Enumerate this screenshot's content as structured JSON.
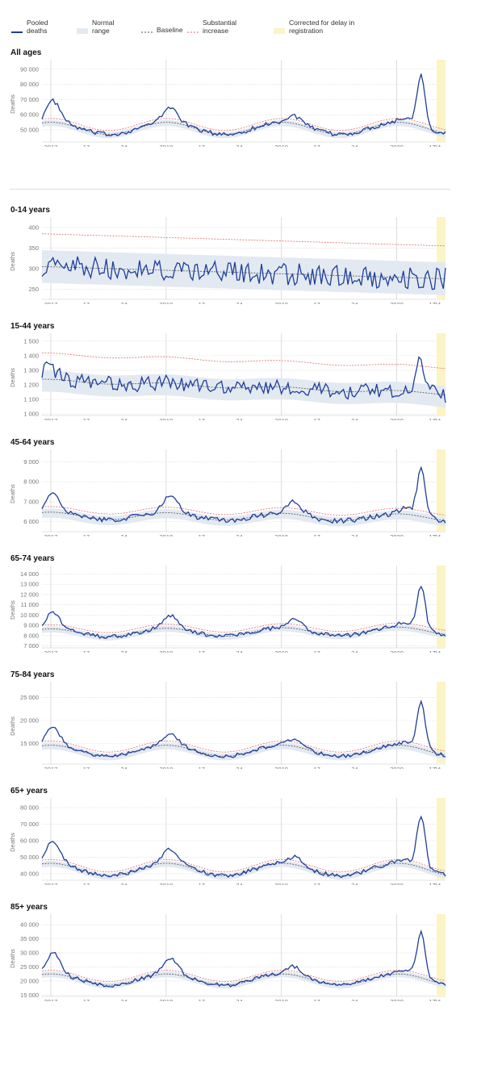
{
  "legend": {
    "pooled": "Pooled\ndeaths",
    "normal": "Normal\nrange",
    "baseline": "Baseline",
    "substantial": "Substantial\nincrease",
    "corrected": "Corrected for delay in\nregistration",
    "colors": {
      "pooled": "#1f3f9a",
      "normal": "#e3e9f1",
      "baseline": "#555555",
      "substantial": "#e06b6b",
      "corrected": "#fbf4c4"
    }
  },
  "chart_data": [
    {
      "type": "line",
      "title": "All ages",
      "ylabel": "Deaths",
      "ylim": [
        42000,
        92000
      ],
      "yticks": [
        50000,
        60000,
        70000,
        80000,
        90000
      ],
      "yticklabels": [
        "50 000",
        "60 000",
        "70 000",
        "80 000",
        "90 000"
      ],
      "xticklabels": [
        "2017",
        "17",
        "34",
        "2018",
        "17",
        "34",
        "2019",
        "17",
        "34",
        "2020",
        "17",
        "34"
      ],
      "profile": {
        "base": 51000,
        "season": 4000,
        "noise": 1500,
        "bandLow": 2500,
        "bandHigh": 1500,
        "subst": 2500,
        "peaks": [
          [
            5,
            14000
          ],
          [
            58,
            10000
          ],
          [
            114,
            5000
          ],
          [
            164,
            3000
          ]
        ],
        "covid": [
          [
            171,
            34000
          ]
        ]
      }
    },
    {
      "type": "line",
      "title": "0-14 years",
      "ylabel": "Deaths",
      "ylim": [
        225,
        410
      ],
      "yticks": [
        250,
        300,
        350,
        400
      ],
      "yticklabels": [
        "250",
        "300",
        "350",
        "400"
      ],
      "xticklabels": [
        "2017",
        "17",
        "34",
        "2018",
        "17",
        "34",
        "2019",
        "17",
        "34",
        "2020",
        "17",
        "34"
      ],
      "profile": {
        "base": 305,
        "trend": -30,
        "season": 0,
        "noise": 28,
        "bandLow": 40,
        "bandHigh": 40,
        "subst": 80,
        "peaks": [],
        "covid": []
      }
    },
    {
      "type": "line",
      "title": "15-44 years",
      "ylabel": "Deaths",
      "ylim": [
        990,
        1510
      ],
      "yticks": [
        1000,
        1100,
        1200,
        1300,
        1400,
        1500
      ],
      "yticklabels": [
        "1 000",
        "1 100",
        "1 200",
        "1 300",
        "1 400",
        "1 500"
      ],
      "xticklabels": [
        "2017",
        "17",
        "34",
        "2018",
        "17",
        "34",
        "2019",
        "17",
        "34",
        "2020",
        "17",
        "34"
      ],
      "profile": {
        "base": 1230,
        "trend": -90,
        "season": 10,
        "noise": 55,
        "bandLow": 85,
        "bandHigh": 60,
        "subst": 180,
        "peaks": [
          [
            3,
            80
          ]
        ],
        "covid": [
          [
            171,
            220
          ]
        ]
      }
    },
    {
      "type": "line",
      "title": "45-64 years",
      "ylabel": "Deaths",
      "ylim": [
        5500,
        9300
      ],
      "yticks": [
        6000,
        7000,
        8000,
        9000
      ],
      "yticklabels": [
        "6 000",
        "7 000",
        "8 000",
        "9 000"
      ],
      "xticklabels": [
        "2017",
        "17",
        "34",
        "2018",
        "17",
        "34",
        "2019",
        "17",
        "34",
        "2020",
        "17",
        "34"
      ],
      "profile": {
        "base": 6300,
        "trend": -100,
        "season": 180,
        "noise": 130,
        "bandLow": 280,
        "bandHigh": 180,
        "subst": 280,
        "peaks": [
          [
            5,
            900
          ],
          [
            58,
            900
          ],
          [
            114,
            600
          ],
          [
            164,
            300
          ]
        ],
        "covid": [
          [
            171,
            2300
          ]
        ]
      }
    },
    {
      "type": "line",
      "title": "65-74 years",
      "ylabel": "Deaths",
      "ylim": [
        6800,
        14200
      ],
      "yticks": [
        7000,
        8000,
        9000,
        10000,
        11000,
        12000,
        13000,
        14000
      ],
      "yticklabels": [
        "7 000",
        "8 000",
        "9 000",
        "10 000",
        "11 000",
        "12 000",
        "13 000",
        "14 000"
      ],
      "xticklabels": [
        "2017",
        "17",
        "34",
        "2018",
        "17",
        "34",
        "2019",
        "17",
        "34",
        "2020",
        "17",
        "34"
      ],
      "profile": {
        "base": 8250,
        "trend": 200,
        "season": 400,
        "noise": 200,
        "bandLow": 350,
        "bandHigh": 250,
        "subst": 400,
        "peaks": [
          [
            5,
            1600
          ],
          [
            58,
            1200
          ],
          [
            114,
            900
          ],
          [
            164,
            500
          ]
        ],
        "covid": [
          [
            171,
            4200
          ]
        ]
      }
    },
    {
      "type": "line",
      "title": "75-84 years",
      "ylabel": "Deaths",
      "ylim": [
        10500,
        27000
      ],
      "yticks": [
        15000,
        20000,
        25000
      ],
      "yticklabels": [
        "15 000",
        "20 000",
        "25 000"
      ],
      "xticklabels": [
        "2017",
        "17",
        "34",
        "2018",
        "17",
        "34",
        "2019",
        "17",
        "34",
        "2020",
        "17",
        "34"
      ],
      "profile": {
        "base": 13400,
        "season": 1200,
        "noise": 400,
        "bandLow": 900,
        "bandHigh": 600,
        "subst": 900,
        "peaks": [
          [
            5,
            3800
          ],
          [
            58,
            2600
          ],
          [
            114,
            1400
          ],
          [
            164,
            600
          ]
        ],
        "covid": [
          [
            171,
            10000
          ]
        ]
      }
    },
    {
      "type": "line",
      "title": "65+ years",
      "ylabel": "Deaths",
      "ylim": [
        36000,
        82000
      ],
      "yticks": [
        40000,
        50000,
        60000,
        70000,
        80000
      ],
      "yticklabels": [
        "40 000",
        "50 000",
        "60 000",
        "70 000",
        "80 000"
      ],
      "xticklabels": [
        "2017",
        "17",
        "34",
        "2018",
        "17",
        "34",
        "2019",
        "17",
        "34",
        "2020",
        "17",
        "34"
      ],
      "profile": {
        "base": 42500,
        "season": 3800,
        "noise": 1300,
        "bandLow": 2200,
        "bandHigh": 1500,
        "subst": 2300,
        "peaks": [
          [
            5,
            13000
          ],
          [
            58,
            8500
          ],
          [
            114,
            4500
          ],
          [
            164,
            2500
          ]
        ],
        "covid": [
          [
            171,
            31000
          ]
        ]
      }
    },
    {
      "type": "line",
      "title": "85+ years",
      "ylabel": "Deaths",
      "ylim": [
        14500,
        41500
      ],
      "yticks": [
        15000,
        20000,
        25000,
        30000,
        35000,
        40000
      ],
      "yticklabels": [
        "15 000",
        "20 000",
        "25 000",
        "30 000",
        "35 000",
        "40 000"
      ],
      "xticklabels": [
        "2017",
        "17",
        "34",
        "2018",
        "17",
        "34",
        "2019",
        "17",
        "34",
        "2020",
        "17",
        "34"
      ],
      "profile": {
        "base": 20500,
        "season": 2000,
        "noise": 700,
        "bandLow": 1200,
        "bandHigh": 900,
        "subst": 1300,
        "peaks": [
          [
            5,
            7500
          ],
          [
            58,
            5500
          ],
          [
            114,
            3000
          ],
          [
            164,
            1800
          ]
        ],
        "covid": [
          [
            171,
            16000
          ]
        ]
      }
    }
  ]
}
